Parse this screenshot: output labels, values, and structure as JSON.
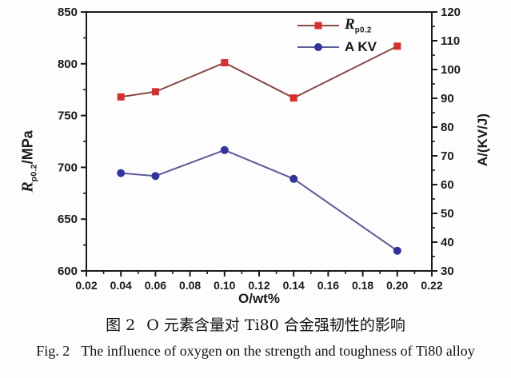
{
  "figure": {
    "caption_zh_label": "图 2",
    "caption_zh_text": "O 元素含量对 Ti80 合金强韧性的影响",
    "caption_en_label": "Fig. 2",
    "caption_en_text": "The influence of oxygen on the strength and toughness of Ti80 alloy"
  },
  "axes": {
    "x_label": "O/wt%",
    "y_left_label_r": "R",
    "y_left_label_sub": "p0.2",
    "y_left_label_unit": "/MPa",
    "y_right_label": "A/(KV/J)"
  },
  "legend": {
    "items": [
      {
        "label_main": "R",
        "label_sub": "p0.2"
      },
      {
        "label_main": "A KV",
        "label_sub": ""
      }
    ]
  },
  "chart_data": {
    "type": "line",
    "x": [
      0.04,
      0.06,
      0.1,
      0.14,
      0.2
    ],
    "series": [
      {
        "name": "Rp0.2",
        "axis": "left",
        "values": [
          768,
          773,
          801,
          767,
          817
        ],
        "marker": "square",
        "marker_color": "#d8302f",
        "line_color": "#8a4a45"
      },
      {
        "name": "A KV",
        "axis": "right",
        "values": [
          64,
          63,
          72,
          62,
          37
        ],
        "marker": "circle",
        "marker_color": "#3333a0",
        "line_color": "#5b5b9b"
      }
    ],
    "title": "",
    "xlabel": "O/wt%",
    "ylabel_left": "Rp0.2/MPa",
    "ylabel_right": "A/(KV/J)",
    "xlim": [
      0.02,
      0.22
    ],
    "ylim_left": [
      600,
      850
    ],
    "ylim_right": [
      30,
      120
    ],
    "x_ticks": [
      "0.02",
      "0.04",
      "0.06",
      "0.08",
      "0.10",
      "0.12",
      "0.14",
      "0.16",
      "0.18",
      "0.20",
      "0.22"
    ],
    "y_left_ticks": [
      600,
      650,
      700,
      750,
      800,
      850
    ],
    "y_right_ticks": [
      30,
      40,
      50,
      60,
      70,
      80,
      90,
      100,
      110,
      120
    ],
    "grid": false,
    "legend_position": "top-inside",
    "frame_color": "#1a1a1a"
  }
}
